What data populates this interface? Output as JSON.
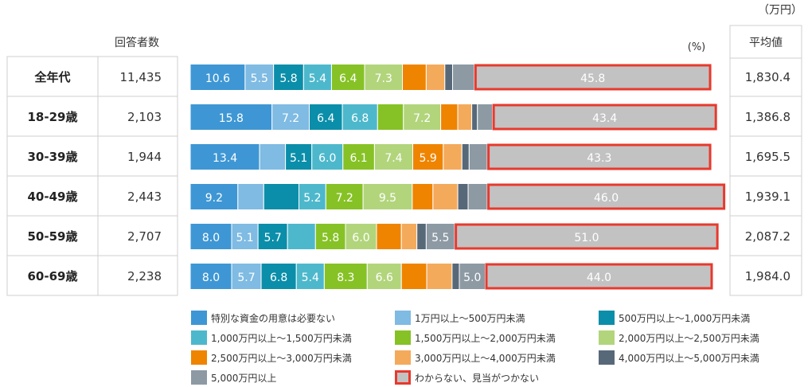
{
  "header": {
    "unit_man_yen": "（万円）",
    "respondents": "回答者数",
    "percent": "(%)",
    "average": "平均値"
  },
  "chart_data": {
    "type": "bar",
    "stacked": true,
    "orientation": "horizontal",
    "xlim": [
      0,
      100
    ],
    "categories": [
      "全年代",
      "18-29歳",
      "30-39歳",
      "40-49歳",
      "50-59歳",
      "60-69歳"
    ],
    "respondents": [
      "11,435",
      "2,103",
      "1,944",
      "2,443",
      "2,707",
      "2,238"
    ],
    "averages": [
      "1,830.4",
      "1,386.8",
      "1,695.5",
      "1,939.1",
      "2,087.2",
      "1,984.0"
    ],
    "series": [
      {
        "name": "特別な資金の用意は必要ない",
        "color": "#3e97d4",
        "values": [
          10.6,
          15.8,
          13.4,
          9.2,
          8.0,
          8.0
        ],
        "labels": [
          "10.6",
          "15.8",
          "13.4",
          "9.2",
          "8.0",
          "8.0"
        ]
      },
      {
        "name": "1万円以上～500万円未満",
        "color": "#7fbbe3",
        "values": [
          5.5,
          7.2,
          5.0,
          5.0,
          5.1,
          5.7
        ],
        "labels": [
          "5.5",
          "7.2",
          "",
          "",
          "5.1",
          "5.7"
        ]
      },
      {
        "name": "500万円以上～1,000万円未満",
        "color": "#0b8ea9",
        "values": [
          5.8,
          6.4,
          5.1,
          6.8,
          5.7,
          6.8
        ],
        "labels": [
          "5.8",
          "6.4",
          "5.1",
          "",
          "5.7",
          "6.8"
        ]
      },
      {
        "name": "1,000万円以上～1,500万円未満",
        "color": "#4db8cc",
        "values": [
          5.4,
          6.8,
          6.0,
          5.2,
          5.4,
          5.4
        ],
        "labels": [
          "5.4",
          "6.8",
          "6.0",
          "5.2",
          "",
          "5.4"
        ]
      },
      {
        "name": "1,500万円以上～2,000万円未満",
        "color": "#86c225",
        "values": [
          6.4,
          5.0,
          6.1,
          7.2,
          5.8,
          8.3
        ],
        "labels": [
          "6.4",
          "",
          "6.1",
          "7.2",
          "5.8",
          "8.3"
        ]
      },
      {
        "name": "2,000万円以上～2,500万円未満",
        "color": "#b2d57c",
        "values": [
          7.3,
          7.2,
          7.4,
          9.5,
          6.0,
          6.6
        ],
        "labels": [
          "7.3",
          "7.2",
          "7.4",
          "9.5",
          "6.0",
          "6.6"
        ]
      },
      {
        "name": "2,500万円以上～3,000万円未満",
        "color": "#ef8400",
        "values": [
          4.6,
          3.3,
          5.9,
          4.0,
          4.8,
          4.9
        ],
        "labels": [
          "",
          "",
          "5.9",
          "",
          "",
          ""
        ]
      },
      {
        "name": "3,000万円以上～4,000万円未満",
        "color": "#f4aa5b",
        "values": [
          3.6,
          2.7,
          3.6,
          4.8,
          3.0,
          4.9
        ],
        "labels": [
          "",
          "",
          "",
          "",
          "",
          ""
        ]
      },
      {
        "name": "4,000万円以上～5,000万円未満",
        "color": "#576879",
        "values": [
          1.5,
          1.1,
          1.4,
          2.0,
          1.8,
          1.4
        ],
        "labels": [
          "",
          "",
          "",
          "",
          "",
          ""
        ]
      },
      {
        "name": "5,000万円以上",
        "color": "#8d9aa4",
        "values": [
          4.2,
          2.9,
          3.5,
          3.7,
          5.5,
          5.0
        ],
        "labels": [
          "",
          "",
          "",
          "",
          "5.5",
          "5.0"
        ]
      },
      {
        "name": "わからない、見当がつかない",
        "color": "#c2c2c2",
        "border": "#e8392d",
        "values": [
          45.8,
          43.4,
          43.3,
          46.0,
          51.0,
          44.0
        ],
        "labels": [
          "45.8",
          "43.4",
          "43.3",
          "46.0",
          "51.0",
          "44.0"
        ]
      }
    ]
  }
}
